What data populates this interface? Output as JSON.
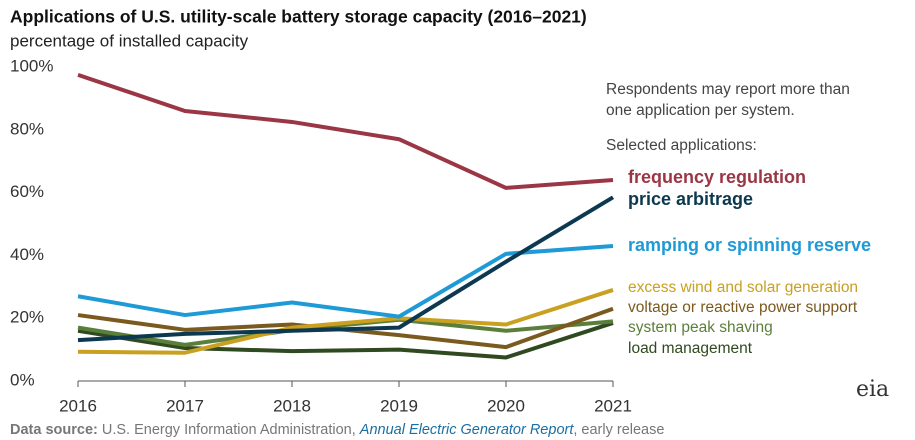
{
  "chart_data": {
    "type": "line",
    "title": "Applications of U.S. utility-scale battery storage capacity (2016–2021)",
    "subtitle": "percentage of installed capacity",
    "x": [
      2016,
      2017,
      2018,
      2019,
      2020,
      2021
    ],
    "xlim": [
      2016,
      2021
    ],
    "xticks": [
      2016,
      2017,
      2018,
      2019,
      2020,
      2021
    ],
    "ylim": [
      0,
      100
    ],
    "yticks": [
      {
        "value": 0,
        "label": "0%"
      },
      {
        "value": 20,
        "label": "20%"
      },
      {
        "value": 40,
        "label": "40%"
      },
      {
        "value": 60,
        "label": "60%"
      },
      {
        "value": 80,
        "label": "80%"
      },
      {
        "value": 100,
        "label": "100%"
      }
    ],
    "series": [
      {
        "name": "frequency regulation",
        "color": "#9b3645",
        "values": [
          97.5,
          86,
          82.5,
          77,
          61.5,
          64
        ]
      },
      {
        "name": "price arbitrage",
        "color": "#0c3850",
        "values": [
          13,
          15,
          16,
          17,
          38,
          58.5
        ]
      },
      {
        "name": "ramping or spinning reserve",
        "color": "#1e9ad6",
        "values": [
          27,
          21,
          25,
          20.5,
          40.5,
          43
        ]
      },
      {
        "name": "excess wind and solar generation",
        "color": "#c9a020",
        "values": [
          9.3,
          9,
          17,
          20,
          18,
          29
        ]
      },
      {
        "name": "voltage or reactive power support",
        "color": "#7a5a1e",
        "values": [
          21,
          16.3,
          18,
          14.6,
          10.8,
          23
        ]
      },
      {
        "name": "system peak shaving",
        "color": "#5b7f3a",
        "values": [
          17,
          11.5,
          16.2,
          19.5,
          16,
          19
        ]
      },
      {
        "name": "load management",
        "color": "#2f4a20",
        "values": [
          16,
          10.5,
          9.5,
          10,
          7.5,
          18.5
        ]
      }
    ],
    "annotations": [
      "Respondents may report more than",
      "one application per system.",
      "Selected applications:"
    ],
    "source": {
      "label": "Data source:",
      "text": "U.S. Energy Information Administration,",
      "report": "Annual Electric Generator Report",
      "suffix": ", early release"
    },
    "logo": "eia"
  }
}
